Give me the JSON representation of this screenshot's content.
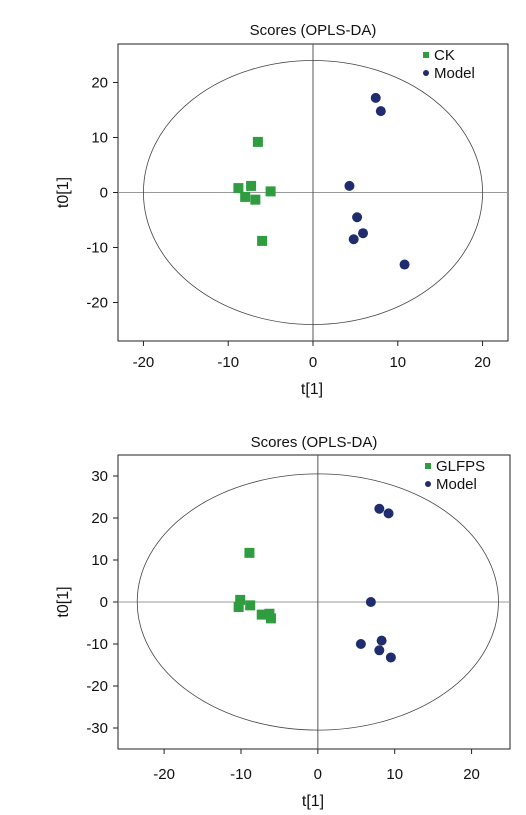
{
  "chart_data": [
    {
      "type": "scatter",
      "title": "Scores (OPLS-DA)",
      "xlabel": "t[1]",
      "ylabel": "t0[1]",
      "xlim": [
        -23,
        23
      ],
      "ylim": [
        -27,
        27
      ],
      "xticks": [
        -20,
        -10,
        0,
        10,
        20
      ],
      "yticks": [
        -20,
        -10,
        0,
        10,
        20
      ],
      "grid": false,
      "legend_position": "top-right",
      "reference_lines": {
        "x": 0,
        "y": 0
      },
      "ellipse": {
        "center": [
          0,
          0
        ],
        "rx": 20,
        "ry": 24
      },
      "series": [
        {
          "name": "CK",
          "marker": "square",
          "color": "#2e9c3f",
          "points": [
            [
              -6.5,
              9.2
            ],
            [
              -8.8,
              0.8
            ],
            [
              -7.3,
              1.2
            ],
            [
              -5.0,
              0.2
            ],
            [
              -8.0,
              -0.8
            ],
            [
              -6.8,
              -1.3
            ],
            [
              -6.0,
              -8.8
            ]
          ]
        },
        {
          "name": "Model",
          "marker": "circle",
          "color": "#1f2d6e",
          "points": [
            [
              7.4,
              17.2
            ],
            [
              8.0,
              14.8
            ],
            [
              4.3,
              1.2
            ],
            [
              5.2,
              -4.5
            ],
            [
              5.9,
              -7.4
            ],
            [
              4.8,
              -8.5
            ],
            [
              10.8,
              -13.1
            ]
          ]
        }
      ]
    },
    {
      "type": "scatter",
      "title": "Scores (OPLS-DA)",
      "xlabel": "t[1]",
      "ylabel": "t0[1]",
      "xlim": [
        -26,
        25
      ],
      "ylim": [
        -35,
        35
      ],
      "xticks": [
        -20,
        -10,
        0,
        10,
        20
      ],
      "yticks": [
        -30,
        -20,
        -10,
        0,
        10,
        20,
        30
      ],
      "grid": false,
      "legend_position": "top-right",
      "reference_lines": {
        "x": 0,
        "y": 0
      },
      "ellipse": {
        "center": [
          0,
          0
        ],
        "rx": 23.5,
        "ry": 30.5
      },
      "series": [
        {
          "name": "GLFPS",
          "marker": "square",
          "color": "#2e9c3f",
          "points": [
            [
              -8.9,
              11.7
            ],
            [
              -10.1,
              0.5
            ],
            [
              -8.8,
              -0.8
            ],
            [
              -10.3,
              -1.2
            ],
            [
              -7.3,
              -3.0
            ],
            [
              -6.3,
              -2.8
            ],
            [
              -6.1,
              -3.9
            ]
          ]
        },
        {
          "name": "Model",
          "marker": "circle",
          "color": "#1f2d6e",
          "points": [
            [
              8.0,
              22.2
            ],
            [
              9.2,
              21.1
            ],
            [
              6.9,
              0.0
            ],
            [
              5.6,
              -10.0
            ],
            [
              8.3,
              -9.2
            ],
            [
              8.0,
              -11.5
            ],
            [
              9.5,
              -13.2
            ]
          ]
        }
      ]
    }
  ]
}
